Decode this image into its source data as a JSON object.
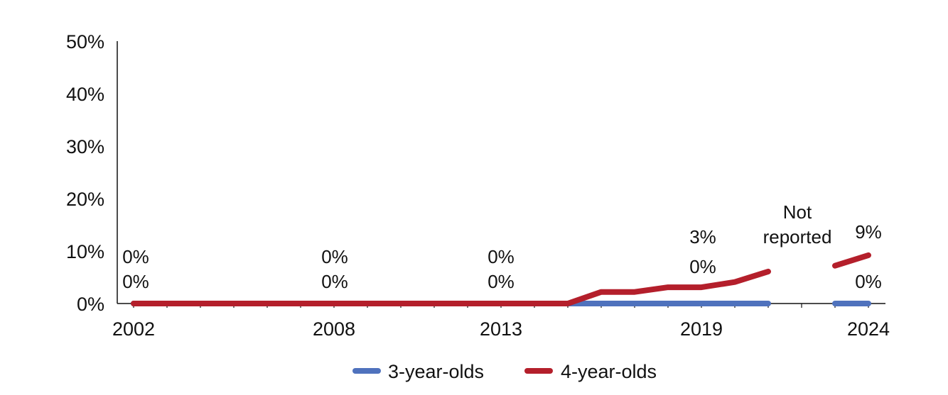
{
  "chart_data": {
    "type": "line",
    "x": [
      2002,
      2003,
      2004,
      2005,
      2006,
      2007,
      2008,
      2009,
      2010,
      2011,
      2012,
      2013,
      2014,
      2015,
      2016,
      2017,
      2018,
      2019,
      2020,
      2021,
      2022,
      2023,
      2024
    ],
    "x_tick_labels": [
      "2002",
      "2008",
      "2013",
      "2019",
      "2024"
    ],
    "y_tick_labels": [
      "0%",
      "10%",
      "20%",
      "30%",
      "40%",
      "50%"
    ],
    "ylim": [
      0,
      50
    ],
    "y_unit": "%",
    "series": [
      {
        "name": "3-year-olds",
        "color": "#4f72bd",
        "values": [
          0,
          0,
          0,
          0,
          0,
          0,
          0,
          0,
          0,
          0,
          0,
          0,
          0,
          0,
          0,
          0,
          0,
          0,
          0,
          0,
          null,
          0,
          0
        ]
      },
      {
        "name": "4-year-olds",
        "color": "#b41f2b",
        "values": [
          0,
          0,
          0,
          0,
          0,
          0,
          0,
          0,
          0,
          0,
          0,
          0,
          0,
          0,
          2.2,
          2.2,
          3.1,
          3.1,
          4.1,
          6.1,
          null,
          7.2,
          9.2
        ]
      }
    ],
    "data_labels": [
      {
        "id": "a",
        "text": "0%"
      },
      {
        "id": "b",
        "text": "0%"
      },
      {
        "id": "c",
        "text": "0%"
      },
      {
        "id": "d",
        "text": "0%"
      },
      {
        "id": "e",
        "text": "0%"
      },
      {
        "id": "f",
        "text": "0%"
      },
      {
        "id": "g",
        "text": "3%"
      },
      {
        "id": "h",
        "text": "0%"
      },
      {
        "id": "i",
        "text": "Not"
      },
      {
        "id": "j",
        "text": "reported"
      },
      {
        "id": "k",
        "text": "9%"
      },
      {
        "id": "l",
        "text": "0%"
      }
    ],
    "legend": [
      "3-year-olds",
      "4-year-olds"
    ],
    "legend_position": "bottom",
    "grid": false
  }
}
